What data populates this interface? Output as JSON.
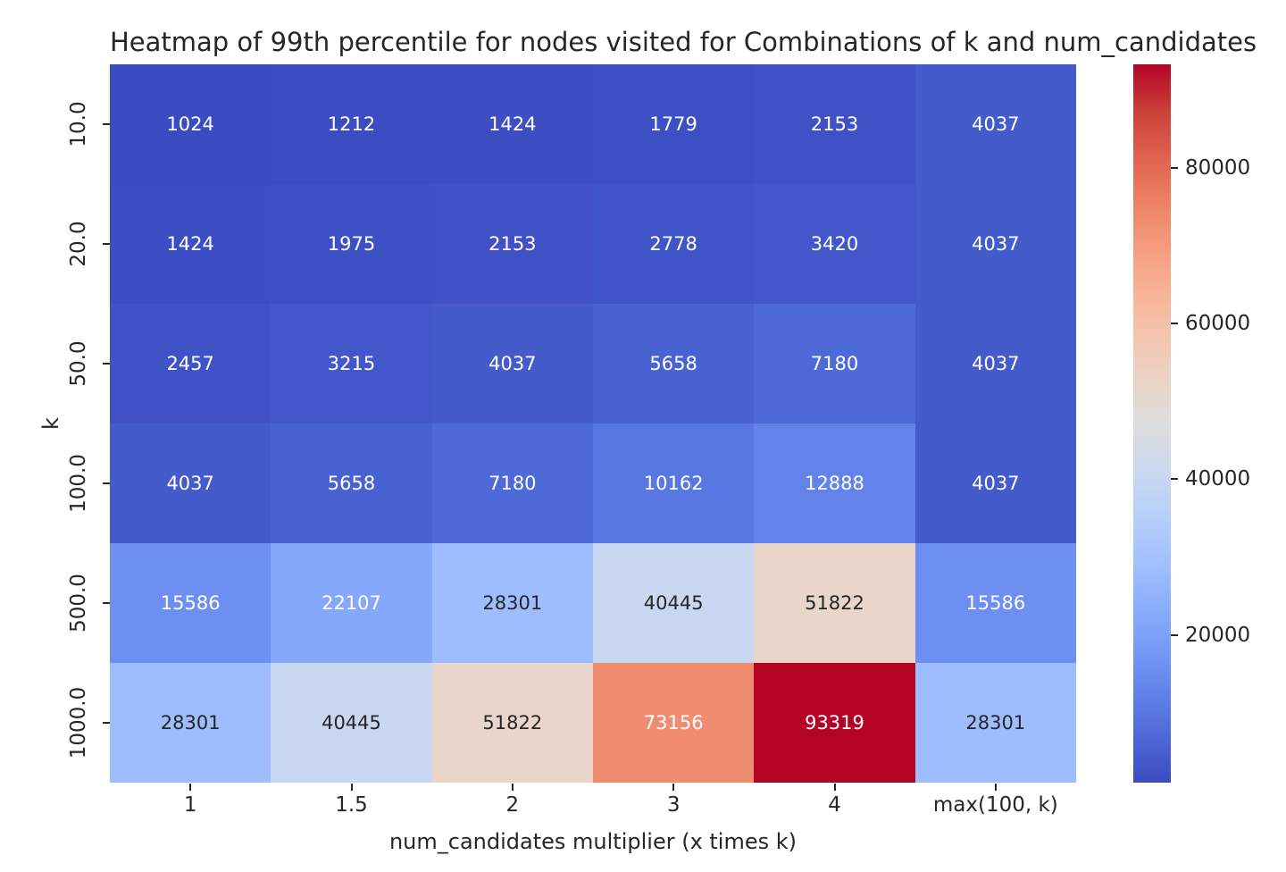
{
  "chart_data": {
    "type": "heatmap",
    "title": "Heatmap of 99th percentile for nodes visited for Combinations of k and num_candidates",
    "xlabel": "num_candidates multiplier (x times k)",
    "ylabel": "k",
    "x_categories": [
      "1",
      "1.5",
      "2",
      "3",
      "4",
      "max(100, k)"
    ],
    "y_categories": [
      "10.0",
      "20.0",
      "50.0",
      "100.0",
      "500.0",
      "1000.0"
    ],
    "values": [
      [
        1024,
        1212,
        1424,
        1779,
        2153,
        4037
      ],
      [
        1424,
        1975,
        2153,
        2778,
        3420,
        4037
      ],
      [
        2457,
        3215,
        4037,
        5658,
        7180,
        4037
      ],
      [
        4037,
        5658,
        7180,
        10162,
        12888,
        4037
      ],
      [
        15586,
        22107,
        28301,
        40445,
        51822,
        15586
      ],
      [
        28301,
        40445,
        51822,
        73156,
        93319,
        28301
      ]
    ],
    "vmin": 1024,
    "vmax": 93319,
    "colormap": "coolwarm",
    "colormap_min_color": "#3B4CC0",
    "colormap_mid_color": "#DDDDDD",
    "colormap_max_color": "#B40426",
    "colorbar_ticks": [
      20000,
      40000,
      60000,
      80000
    ],
    "annotation_color_light": "#ffffff",
    "annotation_color_dark": "#262626",
    "legend_position": "right-colorbar",
    "grid": false
  }
}
